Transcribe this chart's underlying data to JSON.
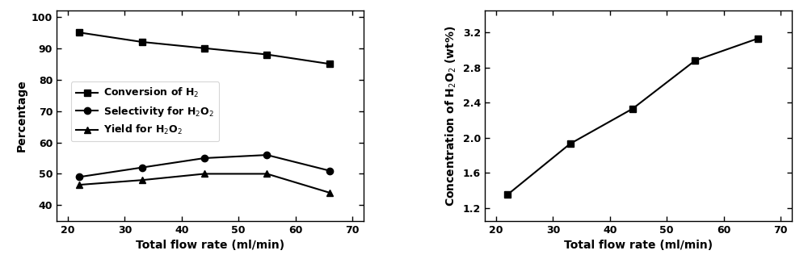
{
  "x": [
    22,
    33,
    44,
    55,
    66
  ],
  "conversion_h2": [
    95,
    92,
    90,
    88,
    85
  ],
  "selectivity_h2o2": [
    49,
    52,
    55,
    56,
    51
  ],
  "yield_h2o2": [
    46.5,
    48,
    50,
    50,
    44
  ],
  "concentration_h2o2": [
    1.35,
    1.93,
    2.33,
    2.88,
    3.13
  ],
  "left_ylabel": "Percentage",
  "right_ylabel": "Concentration of H$_2$O$_2$ (wt%)",
  "xlabel": "Total flow rate (ml/min)",
  "left_ylim": [
    35,
    102
  ],
  "left_yticks": [
    40,
    50,
    60,
    70,
    80,
    90,
    100
  ],
  "right_ylim": [
    1.05,
    3.45
  ],
  "right_yticks": [
    1.2,
    1.6,
    2.0,
    2.4,
    2.8,
    3.2
  ],
  "xlim": [
    18,
    72
  ],
  "xticks": [
    20,
    30,
    40,
    50,
    60,
    70
  ],
  "legend_conversion": "Conversion of H$_2$",
  "legend_selectivity": "Selectivity for H$_2$O$_2$",
  "legend_yield": "Yield for H$_2$O$_2$",
  "line_color": "#000000",
  "marker_square": "s",
  "marker_circle": "o",
  "marker_triangle": "^",
  "markersize": 6,
  "linewidth": 1.5,
  "fontsize_label": 10,
  "fontsize_tick": 9,
  "fontsize_legend": 9
}
